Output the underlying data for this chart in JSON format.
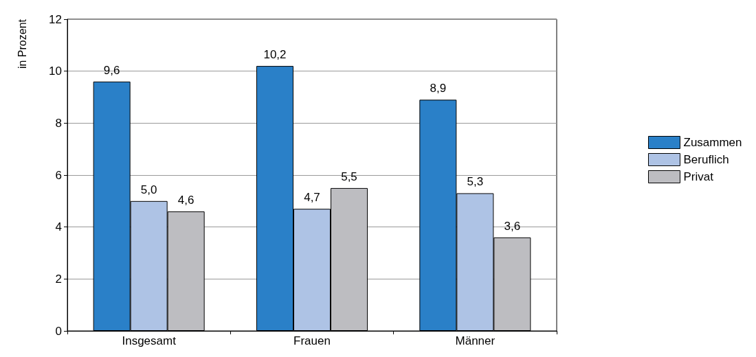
{
  "chart_data": {
    "type": "bar",
    "ylabel": "in Prozent",
    "categories": [
      "Insgesamt",
      "Frauen",
      "Männer"
    ],
    "series": [
      {
        "name": "Zusammen",
        "color": "#2a80c8",
        "values": [
          9.6,
          10.2,
          8.9
        ],
        "value_labels": [
          "9,6",
          "10,2",
          "8,9"
        ]
      },
      {
        "name": "Beruflich",
        "color": "#aec3e5",
        "values": [
          5.0,
          4.7,
          5.3
        ],
        "value_labels": [
          "5,0",
          "4,7",
          "5,3"
        ]
      },
      {
        "name": "Privat",
        "color": "#bdbdc1",
        "values": [
          4.6,
          5.5,
          3.6
        ],
        "value_labels": [
          "4,6",
          "5,5",
          "3,6"
        ]
      }
    ],
    "ylim": [
      0,
      12
    ],
    "yticks": [
      0,
      2,
      4,
      6,
      8,
      10,
      12
    ],
    "grid": "y",
    "legend": "right"
  }
}
